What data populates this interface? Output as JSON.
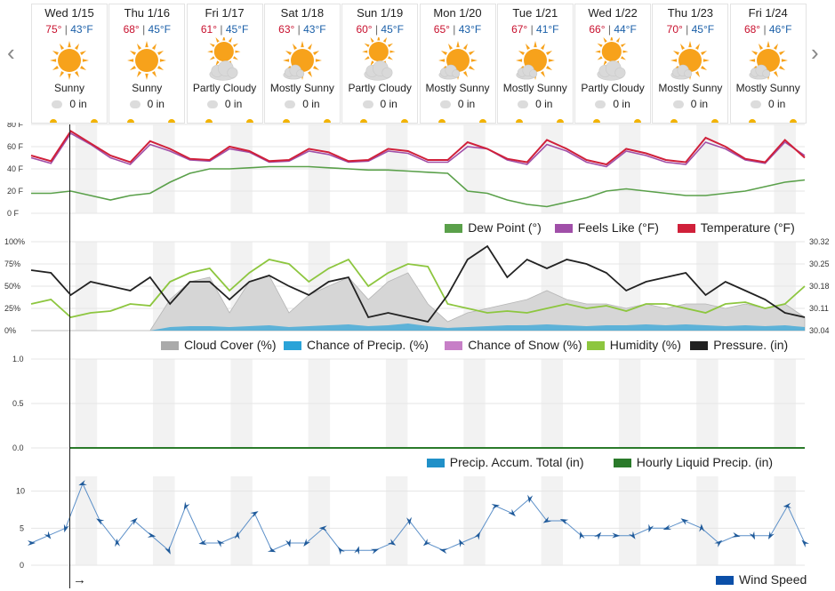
{
  "nav": {
    "prev": "‹",
    "next": "›"
  },
  "days": [
    {
      "name": "Wed 1/15",
      "hi": "75°",
      "lo": "43°F",
      "cond": "Sunny",
      "icon": "sun",
      "precip": "0 in"
    },
    {
      "name": "Thu 1/16",
      "hi": "68°",
      "lo": "45°F",
      "cond": "Sunny",
      "icon": "sun",
      "precip": "0 in"
    },
    {
      "name": "Fri 1/17",
      "hi": "61°",
      "lo": "45°F",
      "cond": "Partly Cloudy",
      "icon": "partly",
      "precip": "0 in"
    },
    {
      "name": "Sat 1/18",
      "hi": "63°",
      "lo": "43°F",
      "cond": "Mostly Sunny",
      "icon": "mostly",
      "precip": "0 in"
    },
    {
      "name": "Sun 1/19",
      "hi": "60°",
      "lo": "45°F",
      "cond": "Partly Cloudy",
      "icon": "partly",
      "precip": "0 in"
    },
    {
      "name": "Mon 1/20",
      "hi": "65°",
      "lo": "43°F",
      "cond": "Mostly Sunny",
      "icon": "mostly",
      "precip": "0 in"
    },
    {
      "name": "Tue 1/21",
      "hi": "67°",
      "lo": "41°F",
      "cond": "Mostly Sunny",
      "icon": "mostly",
      "precip": "0 in"
    },
    {
      "name": "Wed 1/22",
      "hi": "66°",
      "lo": "44°F",
      "cond": "Partly Cloudy",
      "icon": "partly",
      "precip": "0 in"
    },
    {
      "name": "Thu 1/23",
      "hi": "70°",
      "lo": "45°F",
      "cond": "Mostly Sunny",
      "icon": "mostly",
      "precip": "0 in"
    },
    {
      "name": "Fri 1/24",
      "hi": "68°",
      "lo": "46°F",
      "cond": "Mostly Sunny",
      "icon": "mostly",
      "precip": "0 in"
    }
  ],
  "colors": {
    "hi": "#c8102e",
    "lo": "#1a5fa8",
    "temp": "#d0203a",
    "feels": "#a04fa8",
    "dew": "#5aa04a",
    "cloud": "#aaaaaa",
    "precip": "#2aa3d8",
    "snow": "#c77fc7",
    "humidity": "#8dc63f",
    "pressure": "#222222",
    "accum": "#2090c8",
    "liquid": "#2a7a2a",
    "wind": "#2f73b6"
  },
  "chart_data": [
    {
      "type": "line",
      "yticks": [
        "80 F",
        "60 F",
        "40 F",
        "20 F",
        "0 F"
      ],
      "ylim": [
        0,
        80
      ],
      "series": [
        {
          "name": "Dew Point (°)",
          "values": [
            18,
            18,
            20,
            16,
            12,
            16,
            18,
            28,
            36,
            40,
            40,
            41,
            42,
            42,
            42,
            41,
            40,
            39,
            39,
            38,
            37,
            36,
            20,
            18,
            12,
            8,
            6,
            10,
            14,
            20,
            22,
            20,
            18,
            16,
            16,
            18,
            20,
            24,
            28,
            30
          ]
        },
        {
          "name": "Feels Like (°F)",
          "values": [
            50,
            45,
            72,
            62,
            50,
            44,
            62,
            56,
            48,
            47,
            58,
            55,
            46,
            47,
            56,
            53,
            46,
            47,
            56,
            54,
            46,
            46,
            60,
            58,
            48,
            44,
            62,
            56,
            46,
            42,
            56,
            52,
            46,
            44,
            64,
            58,
            48,
            45,
            64,
            52
          ]
        },
        {
          "name": "Temperature (°F)",
          "values": [
            52,
            47,
            74,
            63,
            52,
            46,
            65,
            58,
            49,
            48,
            60,
            56,
            47,
            48,
            58,
            55,
            47,
            48,
            58,
            56,
            48,
            48,
            64,
            58,
            49,
            46,
            66,
            58,
            48,
            44,
            58,
            54,
            48,
            46,
            68,
            60,
            49,
            46,
            66,
            50
          ]
        }
      ]
    },
    {
      "type": "line",
      "yticks_left": [
        "100%",
        "75%",
        "50%",
        "25%",
        "0%"
      ],
      "yticks_right": [
        "30.32",
        "30.25",
        "30.18",
        "30.11",
        "30.04"
      ],
      "series": [
        {
          "name": "Cloud Cover (%)",
          "values": [
            0,
            0,
            0,
            0,
            0,
            0,
            0,
            35,
            55,
            60,
            20,
            55,
            62,
            20,
            40,
            50,
            60,
            35,
            55,
            65,
            30,
            10,
            20,
            25,
            30,
            35,
            45,
            35,
            30,
            30,
            25,
            30,
            25,
            30,
            30,
            25,
            30,
            25,
            30,
            15
          ]
        },
        {
          "name": "Chance of Precip. (%)",
          "values": [
            0,
            0,
            0,
            0,
            0,
            0,
            0,
            4,
            5,
            5,
            4,
            5,
            6,
            4,
            5,
            6,
            7,
            5,
            6,
            8,
            5,
            3,
            4,
            5,
            6,
            6,
            7,
            6,
            5,
            6,
            6,
            7,
            6,
            7,
            6,
            5,
            6,
            5,
            6,
            4
          ]
        },
        {
          "name": "Chance of Snow (%)",
          "values": [
            0,
            0,
            0,
            0,
            0,
            0,
            0,
            0,
            0,
            0,
            0,
            0,
            0,
            0,
            0,
            0,
            0,
            0,
            0,
            0,
            0,
            0,
            0,
            0,
            0,
            0,
            0,
            0,
            0,
            0,
            0,
            0,
            0,
            0,
            0,
            0,
            0,
            0,
            0,
            0
          ]
        },
        {
          "name": "Humidity (%)",
          "values": [
            30,
            35,
            15,
            20,
            22,
            30,
            28,
            55,
            65,
            70,
            45,
            65,
            80,
            75,
            55,
            70,
            80,
            50,
            65,
            75,
            72,
            30,
            25,
            20,
            22,
            20,
            25,
            30,
            25,
            28,
            22,
            30,
            30,
            25,
            20,
            30,
            32,
            25,
            30,
            50
          ]
        },
        {
          "name": "Pressure. (in)",
          "values": [
            68,
            65,
            40,
            55,
            50,
            45,
            60,
            30,
            55,
            55,
            35,
            55,
            62,
            50,
            40,
            55,
            60,
            15,
            20,
            15,
            10,
            40,
            80,
            95,
            60,
            80,
            70,
            80,
            75,
            65,
            45,
            55,
            60,
            65,
            40,
            55,
            45,
            35,
            20,
            15
          ]
        }
      ]
    },
    {
      "type": "line",
      "yticks": [
        "1.0",
        "0.5",
        "0.0"
      ],
      "series": [
        {
          "name": "Precip. Accum. Total (in)",
          "values": [
            0,
            0,
            0,
            0,
            0,
            0,
            0,
            0,
            0,
            0,
            0,
            0,
            0,
            0,
            0,
            0,
            0,
            0,
            0,
            0
          ]
        },
        {
          "name": "Hourly Liquid Precip. (in)",
          "values": [
            0,
            0,
            0,
            0,
            0,
            0,
            0,
            0,
            0,
            0,
            0,
            0,
            0,
            0,
            0,
            0,
            0,
            0,
            0,
            0
          ]
        }
      ]
    },
    {
      "type": "line",
      "yticks": [
        "10",
        "5",
        "0"
      ],
      "ylim": [
        0,
        12
      ],
      "series": [
        {
          "name": "Wind Speed",
          "values": [
            3,
            4,
            5,
            11,
            6,
            3,
            6,
            4,
            2,
            8,
            3,
            3,
            4,
            7,
            2,
            3,
            3,
            5,
            2,
            2,
            2,
            3,
            6,
            3,
            2,
            3,
            4,
            8,
            7,
            9,
            6,
            6,
            4,
            4,
            4,
            4,
            5,
            5,
            6,
            5,
            3,
            4,
            4,
            4,
            8,
            3
          ]
        }
      ]
    }
  ],
  "legends": {
    "temp": [
      {
        "label": "Dew Point (°)",
        "color": "#5aa04a"
      },
      {
        "label": "Feels Like (°F)",
        "color": "#a04fa8"
      },
      {
        "label": "Temperature (°F)",
        "color": "#d0203a"
      }
    ],
    "cloud": [
      {
        "label": "Cloud Cover (%)",
        "color": "#aaaaaa"
      },
      {
        "label": "Chance of Precip. (%)",
        "color": "#2aa3d8"
      },
      {
        "label": "Chance of Snow (%)",
        "color": "#c77fc7"
      },
      {
        "label": "Humidity (%)",
        "color": "#8dc63f"
      },
      {
        "label": "Pressure. (in)",
        "color": "#222222"
      }
    ],
    "precip": [
      {
        "label": "Precip. Accum. Total (in)",
        "color": "#2090c8"
      },
      {
        "label": "Hourly Liquid Precip. (in)",
        "color": "#2a7a2a"
      }
    ],
    "wind": [
      {
        "label": "Wind Speed",
        "color": "#0b4fa8"
      }
    ]
  },
  "bottom_arrow": "→"
}
